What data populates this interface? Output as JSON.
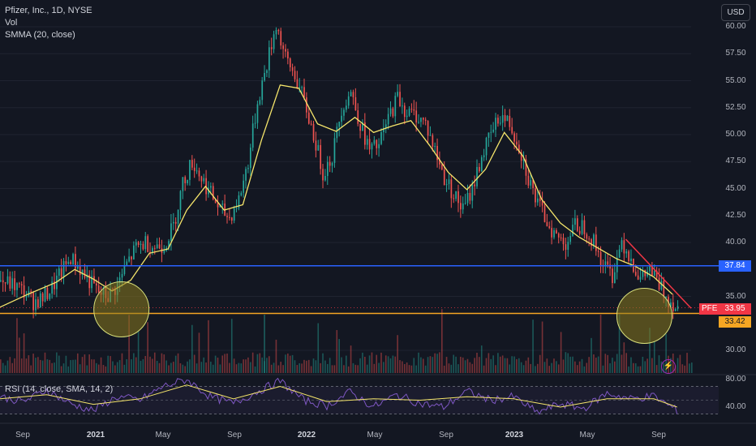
{
  "legend": {
    "title": "Pfizer, Inc., 1D, NYSE",
    "vol": "Vol",
    "smma": "SMMA (20, close)",
    "rsi": "RSI (14, close, SMA, 14, 2)"
  },
  "currency_button": "USD",
  "price_axis": [
    "60.00",
    "57.50",
    "55.00",
    "52.50",
    "50.00",
    "47.50",
    "45.00",
    "42.50",
    "40.00",
    "35.00",
    "30.00"
  ],
  "rsi_axis": [
    "80.00",
    "40.00"
  ],
  "time_axis": [
    {
      "label": "Sep",
      "major": false
    },
    {
      "label": "2021",
      "major": true
    },
    {
      "label": "May",
      "major": false
    },
    {
      "label": "Sep",
      "major": false
    },
    {
      "label": "2022",
      "major": true
    },
    {
      "label": "May",
      "major": false
    },
    {
      "label": "Sep",
      "major": false
    },
    {
      "label": "2023",
      "major": true
    },
    {
      "label": "May",
      "major": false
    },
    {
      "label": "Sep",
      "major": false
    }
  ],
  "price_tags": {
    "resistance": "37.84",
    "ticker": "PFE",
    "current": "33.95",
    "support": "33.42"
  },
  "colors": {
    "up": "#26a69a",
    "down": "#ef5350",
    "smma": "#f5e56b",
    "resistance": "#2962ff",
    "support": "#f5a623",
    "trendline": "#f23645",
    "rsi": "#7e57c2",
    "circle_fill": "#8a7a1e",
    "circle_stroke": "#d9e07a"
  },
  "icons": {
    "flash": "lightning-icon"
  },
  "chart_data": {
    "type": "candlestick",
    "title": "Pfizer, Inc., 1D, NYSE",
    "x": [
      "Sep",
      "2021",
      "May",
      "Sep",
      "2022",
      "May",
      "Sep",
      "2023",
      "May",
      "Sep"
    ],
    "ylim": [
      29,
      61
    ],
    "rsi_ylim": [
      20,
      90
    ],
    "close_path": [
      [
        0,
        36.4
      ],
      [
        3,
        36.0
      ],
      [
        5,
        35.4
      ],
      [
        7,
        34.5
      ],
      [
        9,
        34.8
      ],
      [
        11,
        35.8
      ],
      [
        13,
        37.2
      ],
      [
        15,
        38.6
      ],
      [
        17,
        37.5
      ],
      [
        19,
        36.4
      ],
      [
        21,
        35.3
      ],
      [
        23,
        35.0
      ],
      [
        25,
        36.0
      ],
      [
        27,
        38.0
      ],
      [
        29,
        39.5
      ],
      [
        31,
        40.0
      ],
      [
        33,
        39.6
      ],
      [
        35,
        39.8
      ],
      [
        37,
        41.5
      ],
      [
        39,
        45.5
      ],
      [
        41,
        47.5
      ],
      [
        43,
        46.0
      ],
      [
        45,
        44.5
      ],
      [
        47,
        43.0
      ],
      [
        49,
        42.3
      ],
      [
        51,
        44.0
      ],
      [
        53,
        47.5
      ],
      [
        55,
        53.0
      ],
      [
        57,
        56.5
      ],
      [
        59,
        60.3
      ],
      [
        61,
        57.0
      ],
      [
        63,
        55.5
      ],
      [
        65,
        53.0
      ],
      [
        67,
        50.0
      ],
      [
        69,
        46.5
      ],
      [
        71,
        48.0
      ],
      [
        73,
        52.5
      ],
      [
        75,
        54.0
      ],
      [
        77,
        51.0
      ],
      [
        79,
        48.5
      ],
      [
        81,
        49.0
      ],
      [
        83,
        51.5
      ],
      [
        85,
        53.5
      ],
      [
        87,
        52.0
      ],
      [
        89,
        51.8
      ],
      [
        91,
        51.0
      ],
      [
        93,
        48.5
      ],
      [
        95,
        46.0
      ],
      [
        97,
        44.5
      ],
      [
        99,
        43.0
      ],
      [
        101,
        45.0
      ],
      [
        103,
        48.0
      ],
      [
        105,
        50.0
      ],
      [
        107,
        51.8
      ],
      [
        109,
        51.0
      ],
      [
        111,
        49.0
      ],
      [
        113,
        46.0
      ],
      [
        115,
        43.5
      ],
      [
        117,
        42.0
      ],
      [
        119,
        40.5
      ],
      [
        121,
        40.0
      ],
      [
        123,
        41.5
      ],
      [
        125,
        41.5
      ],
      [
        127,
        40.0
      ],
      [
        129,
        38.0
      ],
      [
        131,
        37.0
      ],
      [
        133,
        40.2
      ],
      [
        135,
        38.5
      ],
      [
        137,
        36.5
      ],
      [
        139,
        37.5
      ],
      [
        141,
        36.0
      ],
      [
        143,
        34.8
      ],
      [
        145,
        33.95
      ]
    ],
    "smma_path": [
      [
        0,
        34.0
      ],
      [
        6,
        35.2
      ],
      [
        12,
        36.3
      ],
      [
        16,
        37.5
      ],
      [
        20,
        36.6
      ],
      [
        24,
        35.5
      ],
      [
        28,
        36.5
      ],
      [
        32,
        39.0
      ],
      [
        36,
        39.4
      ],
      [
        40,
        43.0
      ],
      [
        44,
        45.2
      ],
      [
        48,
        43.0
      ],
      [
        52,
        43.5
      ],
      [
        56,
        49.5
      ],
      [
        60,
        54.6
      ],
      [
        64,
        54.3
      ],
      [
        68,
        51.0
      ],
      [
        72,
        50.3
      ],
      [
        76,
        51.6
      ],
      [
        80,
        50.2
      ],
      [
        84,
        50.8
      ],
      [
        88,
        51.3
      ],
      [
        92,
        49.0
      ],
      [
        96,
        46.5
      ],
      [
        100,
        44.9
      ],
      [
        104,
        46.8
      ],
      [
        108,
        50.2
      ],
      [
        112,
        48.0
      ],
      [
        116,
        44.0
      ],
      [
        120,
        41.8
      ],
      [
        124,
        40.5
      ],
      [
        128,
        39.5
      ],
      [
        132,
        38.5
      ],
      [
        136,
        37.8
      ],
      [
        140,
        36.8
      ],
      [
        144,
        35.2
      ]
    ],
    "horizontal_levels": [
      37.84,
      33.42
    ],
    "current_price": 33.95,
    "trendline": [
      [
        134,
        40.3
      ],
      [
        148,
        33.9
      ]
    ],
    "highlight_circles": [
      [
        26,
        33.8
      ],
      [
        138,
        33.2
      ]
    ],
    "volume": "spikes",
    "rsi_path": [
      [
        0,
        55
      ],
      [
        5,
        48
      ],
      [
        10,
        65
      ],
      [
        15,
        45
      ],
      [
        20,
        35
      ],
      [
        25,
        55
      ],
      [
        30,
        50
      ],
      [
        35,
        70
      ],
      [
        40,
        80
      ],
      [
        45,
        55
      ],
      [
        50,
        45
      ],
      [
        55,
        62
      ],
      [
        60,
        78
      ],
      [
        65,
        50
      ],
      [
        70,
        42
      ],
      [
        75,
        62
      ],
      [
        80,
        40
      ],
      [
        85,
        58
      ],
      [
        90,
        45
      ],
      [
        95,
        40
      ],
      [
        100,
        63
      ],
      [
        105,
        50
      ],
      [
        110,
        55
      ],
      [
        115,
        32
      ],
      [
        120,
        45
      ],
      [
        125,
        38
      ],
      [
        130,
        60
      ],
      [
        135,
        52
      ],
      [
        140,
        56
      ],
      [
        145,
        35
      ]
    ],
    "rsi_sma_path": [
      [
        0,
        52
      ],
      [
        10,
        58
      ],
      [
        20,
        44
      ],
      [
        30,
        52
      ],
      [
        40,
        72
      ],
      [
        50,
        52
      ],
      [
        60,
        70
      ],
      [
        70,
        48
      ],
      [
        80,
        52
      ],
      [
        90,
        50
      ],
      [
        100,
        55
      ],
      [
        110,
        52
      ],
      [
        120,
        40
      ],
      [
        130,
        52
      ],
      [
        140,
        52
      ],
      [
        145,
        40
      ]
    ]
  }
}
